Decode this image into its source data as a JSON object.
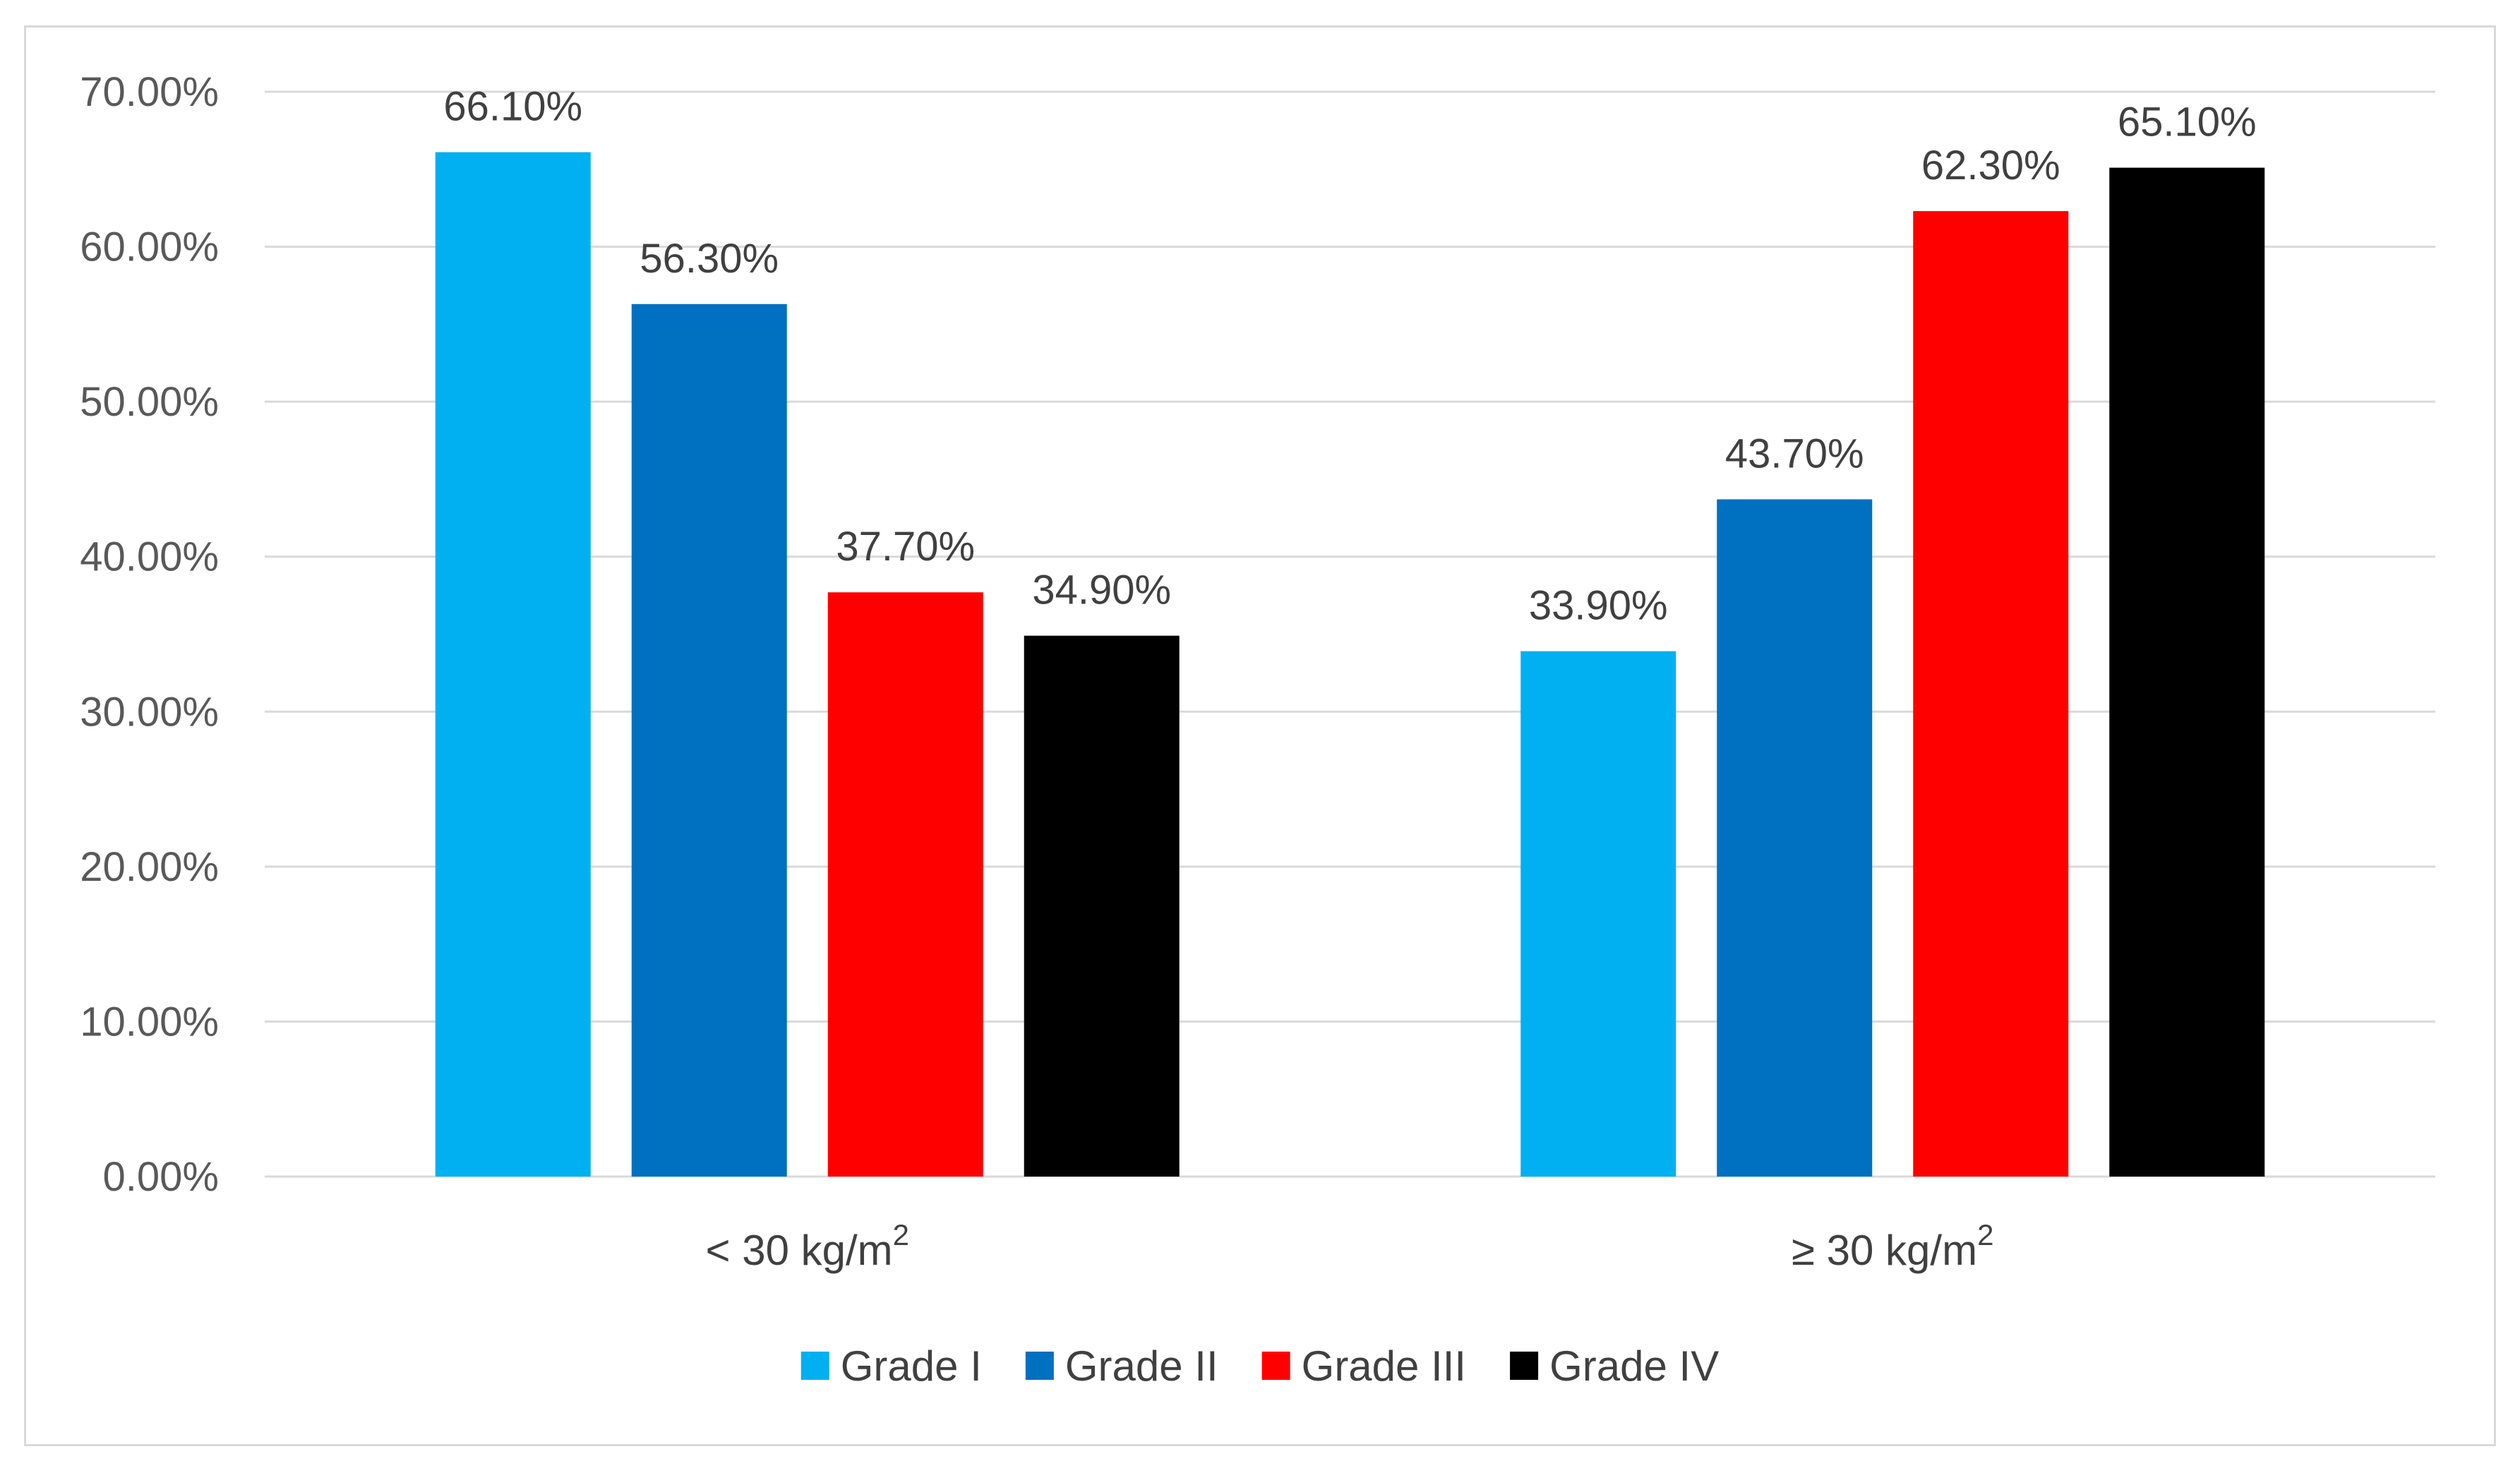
{
  "chart_data": {
    "type": "bar",
    "title": "",
    "xlabel": "",
    "ylabel": "",
    "categories": [
      "< 30 kg/m",
      "≥ 30 kg/m"
    ],
    "category_superscript": "2",
    "series": [
      {
        "name": "Grade I",
        "color": "#00B0F0",
        "values": [
          66.1,
          33.9
        ],
        "labels": [
          "66.10%",
          "33.90%"
        ]
      },
      {
        "name": "Grade II",
        "color": "#0070C0",
        "values": [
          56.3,
          43.7
        ],
        "labels": [
          "56.30%",
          "43.70%"
        ]
      },
      {
        "name": "Grade III",
        "color": "#FF0000",
        "values": [
          37.7,
          62.3
        ],
        "labels": [
          "37.70%",
          "62.30%"
        ]
      },
      {
        "name": "Grade IV",
        "color": "#000000",
        "values": [
          34.9,
          65.1
        ],
        "labels": [
          "34.90%",
          "65.10%"
        ]
      }
    ],
    "ylim": [
      0,
      70
    ],
    "yticks": [
      0,
      10,
      20,
      30,
      40,
      50,
      60,
      70
    ],
    "ytick_labels": [
      "0.00%",
      "10.00%",
      "20.00%",
      "30.00%",
      "40.00%",
      "50.00%",
      "60.00%",
      "70.00%"
    ],
    "grid": true,
    "legend_position": "bottom",
    "gridline_color": "#d9d9d9"
  }
}
